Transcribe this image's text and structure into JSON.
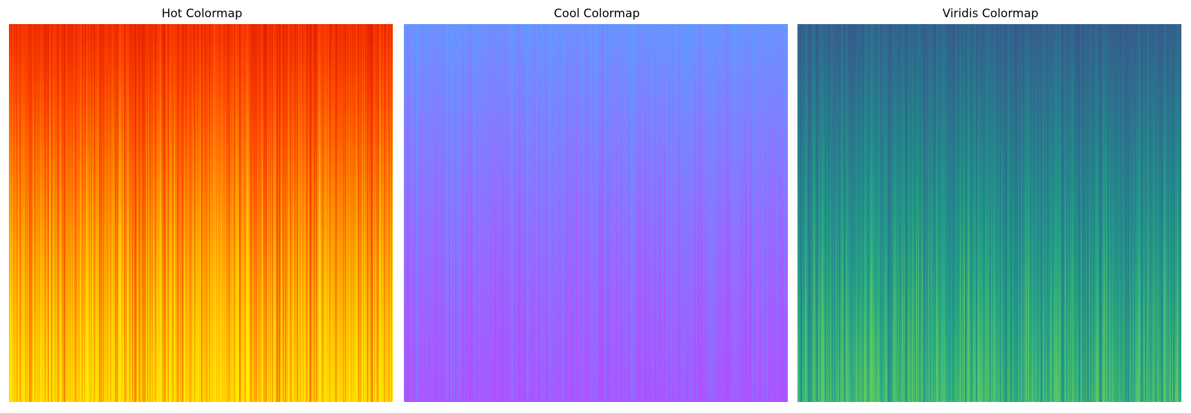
{
  "chart_data": [
    {
      "type": "heatmap",
      "title": "Hot Colormap",
      "colormap": "hot",
      "axes_visible": false,
      "grid": false,
      "legend": "none",
      "description_rows_vary": "vertical gradient: red at top to yellow at bottom, with vertical column streaks",
      "color_stops": [
        "#e01a00",
        "#ff4500",
        "#ff8c00",
        "#ffc800",
        "#ffee00"
      ]
    },
    {
      "type": "heatmap",
      "title": "Cool Colormap",
      "colormap": "cool",
      "axes_visible": false,
      "grid": false,
      "legend": "none",
      "color_stops": [
        "#5aa0ff",
        "#7a85ff",
        "#9070ff",
        "#a55aff",
        "#b04fff"
      ]
    },
    {
      "type": "heatmap",
      "title": "Viridis Colormap",
      "colormap": "viridis",
      "axes_visible": false,
      "grid": false,
      "legend": "none",
      "color_stops": [
        "#3b528b",
        "#2c728e",
        "#21918c",
        "#28ae80",
        "#5ec962"
      ]
    }
  ]
}
